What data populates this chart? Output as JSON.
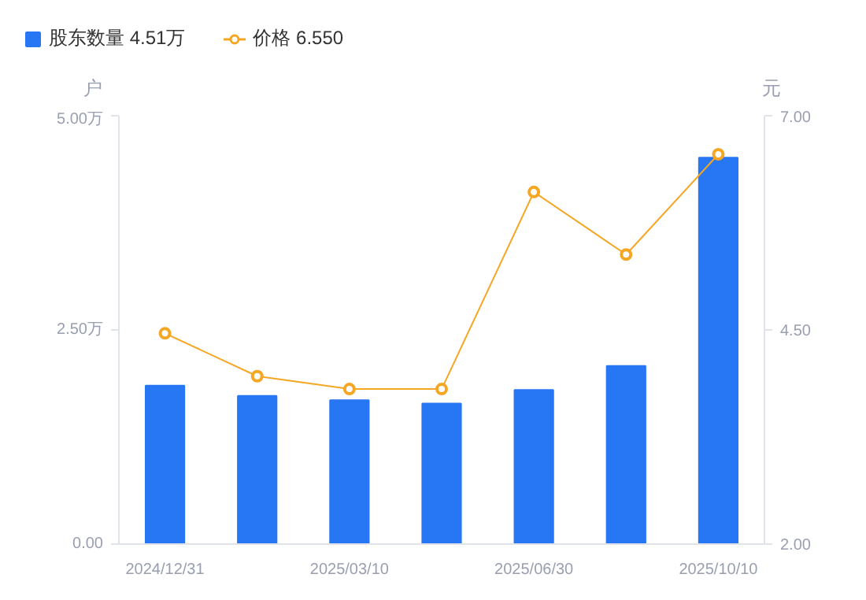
{
  "chart_data": {
    "type": "bar",
    "categories": [
      "2024/12/31",
      null,
      "2025/03/10",
      null,
      "2025/06/30",
      null,
      "2025/10/10"
    ],
    "ylabel": "户",
    "y2label": "元",
    "ylim": [
      0,
      5
    ],
    "yticks": [
      {
        "value": 0,
        "label": "0.00"
      },
      {
        "value": 2.5,
        "label": "2.50万"
      },
      {
        "value": 5,
        "label": "5.00万"
      }
    ],
    "y2lim": [
      2,
      7
    ],
    "y2ticks": [
      {
        "value": 2,
        "label": "2.00"
      },
      {
        "value": 4.5,
        "label": "4.50"
      },
      {
        "value": 7,
        "label": "7.00"
      }
    ],
    "series": [
      {
        "name": "股东数量 4.51万",
        "color": "#2776f3",
        "values": [
          1.85,
          1.73,
          1.68,
          1.64,
          1.8,
          2.08,
          4.51
        ]
      },
      {
        "name": "价格 6.550",
        "type": "line",
        "axis": "y2",
        "color": "#f5a623",
        "marker": "circle",
        "values": [
          4.46,
          3.96,
          3.81,
          3.81,
          6.11,
          5.38,
          6.55
        ]
      }
    ],
    "grid": false,
    "legend": "top left"
  }
}
